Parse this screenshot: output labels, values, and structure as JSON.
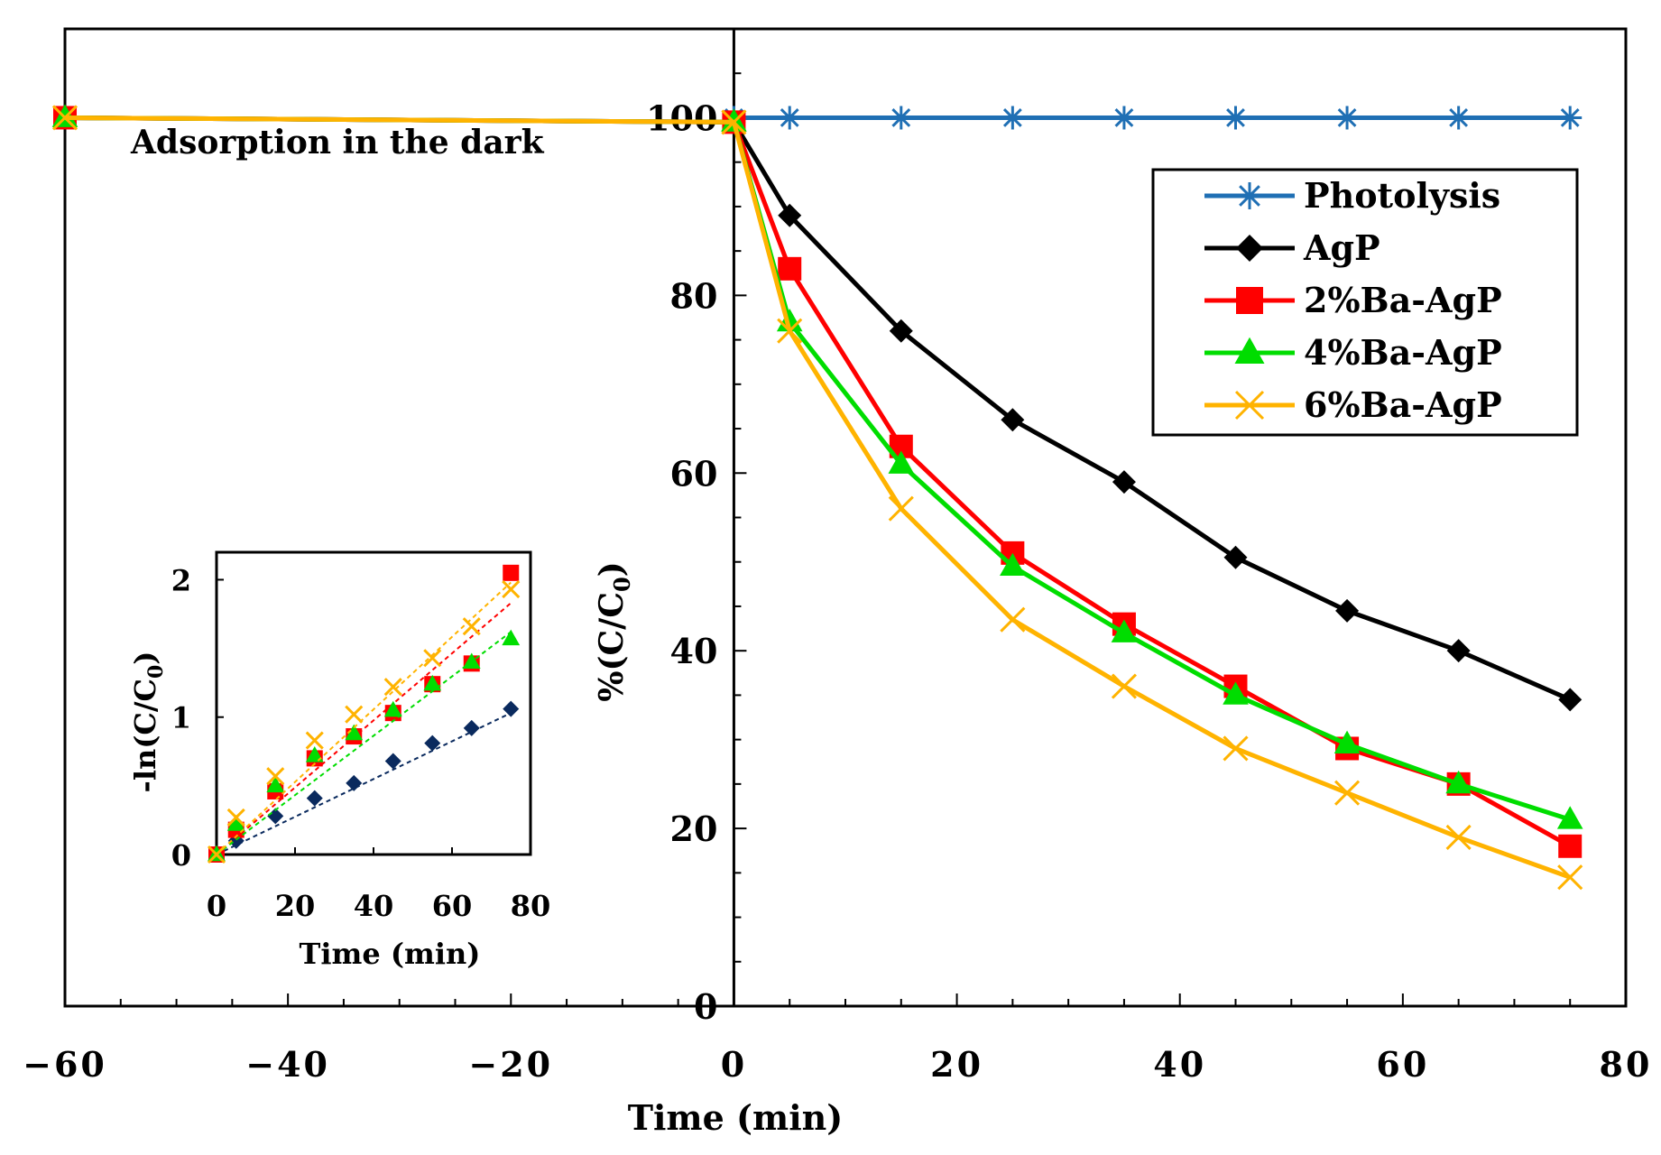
{
  "chart_data": [
    {
      "type": "line",
      "title": "",
      "xlabel": "Time (min)",
      "ylabel": "%(C/C",
      "ylabel_sub": "0",
      "ylabel_end": ")",
      "xlim": [
        -60,
        80
      ],
      "ylim": [
        0,
        110
      ],
      "xticks": [
        -60,
        -40,
        -20,
        0,
        20,
        40,
        60,
        80
      ],
      "xtick_labels": [
        "−60",
        "−40",
        "−20",
        "0",
        "20",
        "40",
        "60",
        "80"
      ],
      "yticks": [
        0,
        20,
        40,
        60,
        80,
        100
      ],
      "ytick_labels": [
        "0",
        "20",
        "40",
        "60",
        "80",
        "100"
      ],
      "grid": false,
      "legend_position": "top-right",
      "annotation": "Adsorption in the dark",
      "series": [
        {
          "name": "Photolysis",
          "color": "#1f6fb4",
          "marker": "asterisk",
          "x": [
            0,
            5,
            15,
            25,
            35,
            45,
            55,
            65,
            75
          ],
          "y": [
            100,
            100,
            100,
            100,
            100,
            100,
            100,
            100,
            100
          ]
        },
        {
          "name": "AgP",
          "color": "#000000",
          "marker": "diamond",
          "x": [
            -60,
            0,
            5,
            15,
            25,
            35,
            45,
            55,
            65,
            75
          ],
          "y": [
            100,
            99.5,
            89,
            76,
            66,
            59,
            50.5,
            44.5,
            40,
            34.5
          ]
        },
        {
          "name": "2%Ba-AgP",
          "color": "#ff0000",
          "marker": "square",
          "x": [
            -60,
            0,
            5,
            15,
            25,
            35,
            45,
            55,
            65,
            75
          ],
          "y": [
            100,
            99.5,
            83,
            63,
            51,
            43,
            36,
            29,
            25,
            18
          ]
        },
        {
          "name": "4%Ba-AgP",
          "color": "#00dd00",
          "marker": "triangle",
          "x": [
            -60,
            0,
            5,
            15,
            25,
            35,
            45,
            55,
            65,
            75
          ],
          "y": [
            100,
            99.5,
            77,
            61,
            49.5,
            42,
            35,
            29.5,
            25,
            21
          ]
        },
        {
          "name": "6%Ba-AgP",
          "color": "#ffb300",
          "marker": "x",
          "x": [
            -60,
            0,
            5,
            15,
            25,
            35,
            45,
            55,
            65,
            75
          ],
          "y": [
            100,
            99.5,
            76,
            56,
            43.5,
            36,
            29,
            24,
            19,
            14.5
          ]
        }
      ]
    },
    {
      "type": "scatter",
      "inset": true,
      "xlabel": "Time (min)",
      "ylabel": "-ln(C/C",
      "ylabel_sub": "0",
      "ylabel_end": ")",
      "xlim": [
        0,
        80
      ],
      "ylim": [
        0,
        2.2
      ],
      "xticks": [
        0,
        20,
        40,
        60,
        80
      ],
      "xtick_labels": [
        "0",
        "20",
        "40",
        "60",
        "80"
      ],
      "yticks": [
        0,
        1,
        2
      ],
      "ytick_labels": [
        "0",
        "1",
        "2"
      ],
      "series": [
        {
          "name": "AgP",
          "color": "#0a2a5e",
          "marker": "diamond",
          "x": [
            0,
            5,
            15,
            25,
            35,
            45,
            55,
            65,
            75
          ],
          "y": [
            0,
            0.1,
            0.28,
            0.41,
            0.52,
            0.68,
            0.81,
            0.92,
            1.06
          ],
          "fit": [
            0,
            1.03
          ]
        },
        {
          "name": "2%Ba-AgP",
          "color": "#ff0000",
          "marker": "square",
          "x": [
            0,
            5,
            15,
            25,
            35,
            45,
            55,
            65,
            75
          ],
          "y": [
            0,
            0.18,
            0.46,
            0.7,
            0.86,
            1.03,
            1.24,
            1.39,
            2.05
          ],
          "fit": [
            0,
            1.83
          ]
        },
        {
          "name": "4%Ba-AgP",
          "color": "#00dd00",
          "marker": "triangle",
          "x": [
            0,
            5,
            15,
            25,
            35,
            45,
            55,
            65,
            75
          ],
          "y": [
            0,
            0.22,
            0.5,
            0.72,
            0.88,
            1.05,
            1.24,
            1.4,
            1.57
          ],
          "fit": [
            0,
            1.62
          ]
        },
        {
          "name": "6%Ba-AgP",
          "color": "#ffb300",
          "marker": "x",
          "x": [
            0,
            5,
            15,
            25,
            35,
            45,
            55,
            65,
            75
          ],
          "y": [
            0,
            0.27,
            0.57,
            0.83,
            1.02,
            1.22,
            1.43,
            1.66,
            1.93
          ],
          "fit": [
            0,
            1.98
          ]
        }
      ]
    }
  ]
}
